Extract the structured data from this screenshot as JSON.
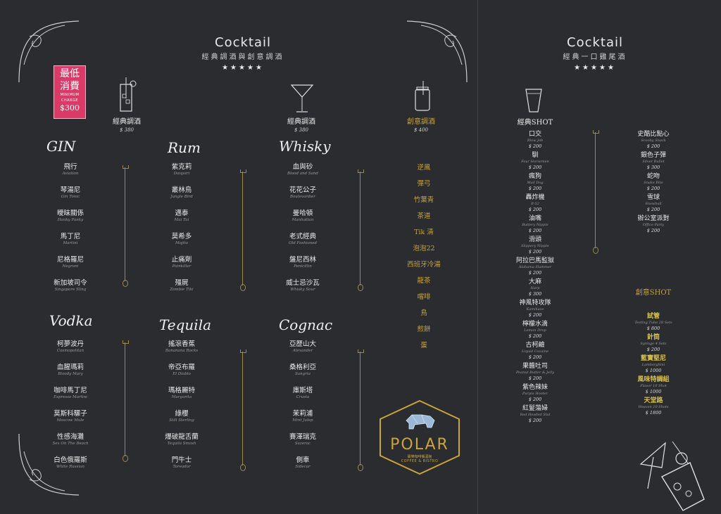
{
  "left": {
    "title": "Cocktail",
    "subtitle": "經典調酒與創意調酒",
    "stars": "★★★★★",
    "badge": {
      "line1": "最低",
      "line2": "消費",
      "line3": "MINIMUM",
      "line4": "CHARGE",
      "price": "$300"
    },
    "categories": [
      {
        "name": "經典調酒",
        "price": "$ 380",
        "glass": "highball-glass-icon"
      },
      {
        "name": "經典調酒",
        "price": "$ 380",
        "glass": "martini-glass-icon"
      },
      {
        "name": "創意調酒",
        "price": "$ 400",
        "glass": "mason-jar-icon"
      }
    ],
    "sections": {
      "gin": {
        "heading": "GIN",
        "items": [
          {
            "zh": "飛行",
            "en": "Aviation"
          },
          {
            "zh": "琴湯尼",
            "en": "Gin Tonic"
          },
          {
            "zh": "曖昧關係",
            "en": "Hanky Panky"
          },
          {
            "zh": "馬丁尼",
            "en": "Martini"
          },
          {
            "zh": "尼格羅尼",
            "en": "Negroni"
          },
          {
            "zh": "新加坡司令",
            "en": "Singapore Sling"
          }
        ]
      },
      "rum": {
        "heading": "Rum",
        "items": [
          {
            "zh": "紫克莉",
            "en": "Daiquiri"
          },
          {
            "zh": "叢林鳥",
            "en": "Jungle Bird"
          },
          {
            "zh": "邁泰",
            "en": "Mai Tai"
          },
          {
            "zh": "莫希多",
            "en": "Mojito"
          },
          {
            "zh": "止痛劑",
            "en": "Painkiller"
          },
          {
            "zh": "殭屍",
            "en": "Zombie Tiki"
          }
        ]
      },
      "whisky": {
        "heading": "Whisky",
        "items": [
          {
            "zh": "血與砂",
            "en": "Blood and Sand"
          },
          {
            "zh": "花花公子",
            "en": "Boulevardier"
          },
          {
            "zh": "曼哈頓",
            "en": "Manhattan"
          },
          {
            "zh": "老式經典",
            "en": "Old Fashioned"
          },
          {
            "zh": "盤尼西林",
            "en": "Penicillin"
          },
          {
            "zh": "威士忌沙瓦",
            "en": "Whisky Sour"
          }
        ]
      },
      "vodka": {
        "heading": "Vodka",
        "items": [
          {
            "zh": "柯夢波丹",
            "en": "Cosmopolitan"
          },
          {
            "zh": "血腥瑪莉",
            "en": "Bloody Mary"
          },
          {
            "zh": "咖啡馬丁尼",
            "en": "Espresso Martini"
          },
          {
            "zh": "莫斯科騾子",
            "en": "Moscow Mule"
          },
          {
            "zh": "性感海灘",
            "en": "Sex On The Beach"
          },
          {
            "zh": "白色俄羅斯",
            "en": "White Russian"
          }
        ]
      },
      "tequila": {
        "heading": "Tequila",
        "items": [
          {
            "zh": "搖滾香蕉",
            "en": "Bananana Rocks"
          },
          {
            "zh": "帝亞布羅",
            "en": "El Diablo"
          },
          {
            "zh": "瑪格麗特",
            "en": "Margarita"
          },
          {
            "zh": "綠櫻",
            "en": "Still Sterling"
          },
          {
            "zh": "爆破龍舌蘭",
            "en": "Tequila Smash"
          },
          {
            "zh": "門牛士",
            "en": "Toreador"
          }
        ]
      },
      "cognac": {
        "heading": "Cognac",
        "items": [
          {
            "zh": "亞歷山大",
            "en": "Alexander"
          },
          {
            "zh": "桑格利亞",
            "en": "Sangria"
          },
          {
            "zh": "庫斯塔",
            "en": "Crusta"
          },
          {
            "zh": "茉莉浦",
            "en": "Mint Julep"
          },
          {
            "zh": "賽澤瑞克",
            "en": "Sazerac"
          },
          {
            "zh": "側車",
            "en": "Sidecar"
          }
        ]
      },
      "creative": [
        "逆風",
        "彈弓",
        "竹葉青",
        "茶道",
        "Tik 清",
        "泡泡22",
        "西班牙冷湯",
        "龍茶",
        "嚐啡",
        "鳥",
        "煎餅",
        "蛋"
      ]
    },
    "logo": {
      "name": "POLAR",
      "tag": "寶樂咖啡餐酒館",
      "tag2": "COFFEE & BISTRO"
    }
  },
  "right": {
    "title": "Cocktail",
    "subtitle": "經典一口雞尾酒",
    "stars": "★★★★★",
    "shot_heading": "經典SHOT",
    "creative_heading": "創意SHOT",
    "shots_a": [
      {
        "zh": "口交",
        "en": "Blow Job",
        "p": "$ 200"
      },
      {
        "zh": "馴",
        "en": "Four Horsemen",
        "p": "$ 200"
      },
      {
        "zh": "瘋狗",
        "en": "Mad Dog",
        "p": "$ 200"
      },
      {
        "zh": "轟炸機",
        "en": "B-52",
        "p": "$ 200"
      },
      {
        "zh": "油嘴",
        "en": "Buttery Nipple",
        "p": "$ 200"
      },
      {
        "zh": "滑頭",
        "en": "Slippery Nipple",
        "p": "$ 200"
      },
      {
        "zh": "阿拉巴馬監獄",
        "en": "Alabama Slammer",
        "p": "$ 200"
      },
      {
        "zh": "大麻",
        "en": "Harp",
        "p": "$ 300"
      },
      {
        "zh": "神風特攻隊",
        "en": "Kamikaze",
        "p": "$ 200"
      },
      {
        "zh": "檸檬水滴",
        "en": "Lemon Drop",
        "p": "$ 200"
      },
      {
        "zh": "古柯鹼",
        "en": "Liquid Cocaine",
        "p": "$ 200"
      },
      {
        "zh": "果醬吐司",
        "en": "Peanut Butter & Jelly",
        "p": "$ 200"
      },
      {
        "zh": "紫色辣妹",
        "en": "Purple Hooter",
        "p": "$ 200"
      },
      {
        "zh": "紅髮蕩婦",
        "en": "Red Headed Slut",
        "p": "$ 200"
      }
    ],
    "shots_b": [
      {
        "zh": "史酷比點心",
        "en": "Scooby Snack",
        "p": "$ 200"
      },
      {
        "zh": "銀色子彈",
        "en": "Silver Bullet",
        "p": "$ 300"
      },
      {
        "zh": "蛇吻",
        "en": "Snake Bite",
        "p": "$ 200"
      },
      {
        "zh": "雪球",
        "en": "Snowball",
        "p": "$ 200"
      },
      {
        "zh": "辦公室派對",
        "en": "Office Party",
        "p": "$ 200"
      }
    ],
    "creative_shots": [
      {
        "zh": "試管",
        "en": "Testing Tube 28 Sets",
        "p": "$ 800"
      },
      {
        "zh": "針筒",
        "en": "Syringe 4 Sets",
        "p": "$ 200"
      },
      {
        "zh": "藍寶堅尼",
        "en": "Lamborghini",
        "p": "$ 1000"
      },
      {
        "zh": "風味特調組",
        "en": "Flavor 10 Shot",
        "p": "$ 1000"
      },
      {
        "zh": "天堂路",
        "en": "Heaven 10 Shots",
        "p": "$ 1800"
      }
    ]
  }
}
